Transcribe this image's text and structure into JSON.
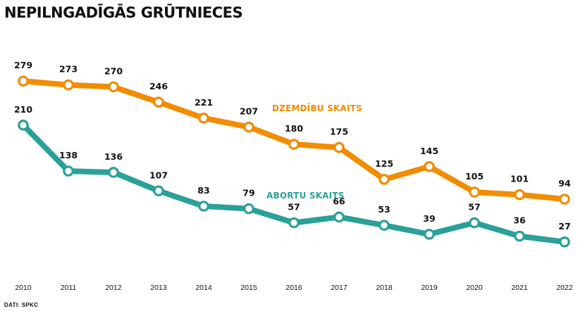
{
  "title": "NEPILNGADĪGĀS GRŪTNIECES",
  "source": "DATI: SPKC",
  "chart_data": {
    "type": "line",
    "title": "NEPILNGADĪGĀS GRŪTNIECES",
    "x": [
      "2010",
      "2011",
      "2012",
      "2013",
      "2014",
      "2015",
      "2016",
      "2017",
      "2018",
      "2019",
      "2020",
      "2021",
      "2022"
    ],
    "ylim": [
      0,
      300
    ],
    "grid": false,
    "series": [
      {
        "name": "DZEMDĪBU SKAITS",
        "color": "#F28C00",
        "values": [
          279,
          273,
          270,
          246,
          221,
          207,
          180,
          175,
          125,
          145,
          105,
          101,
          94
        ]
      },
      {
        "name": "ABORTU SKAITS",
        "color": "#2AA198",
        "values": [
          210,
          138,
          136,
          107,
          83,
          79,
          57,
          66,
          53,
          39,
          57,
          36,
          27
        ]
      }
    ]
  }
}
